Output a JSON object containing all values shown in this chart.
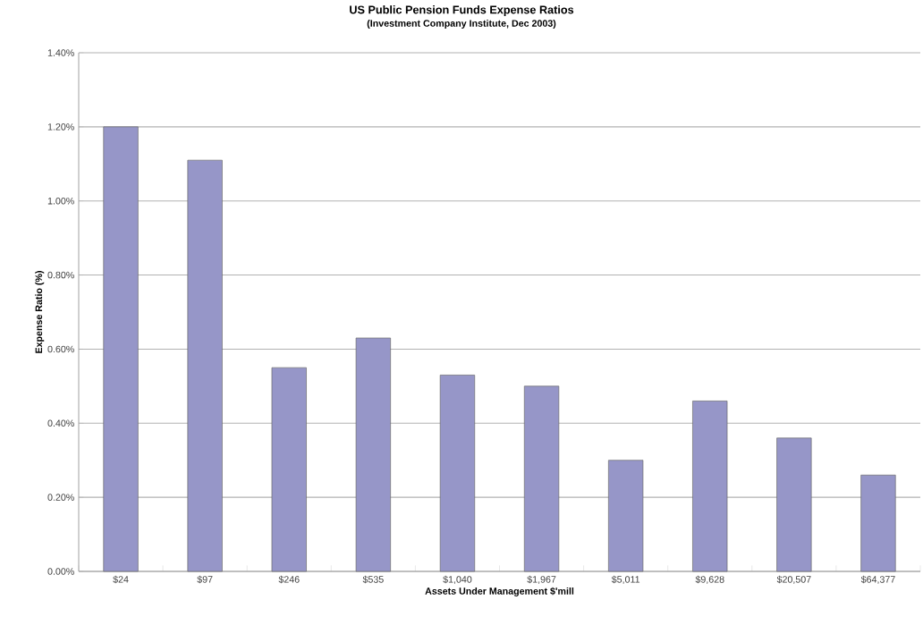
{
  "chart_data": {
    "type": "bar",
    "title": "US Public Pension Funds Expense Ratios",
    "subtitle": "(Investment Company Institute, Dec 2003)",
    "xlabel": "Assets Under Management $'mill",
    "ylabel": "Expense Ratio (%)",
    "categories": [
      "$24",
      "$97",
      "$246",
      "$535",
      "$1,040",
      "$1,967",
      "$5,011",
      "$9,628",
      "$20,507",
      "$64,377"
    ],
    "values": [
      1.2,
      1.11,
      0.55,
      0.63,
      0.53,
      0.5,
      0.3,
      0.46,
      0.36,
      0.26
    ],
    "color": "#9696c8",
    "ylim": [
      0,
      1.4
    ],
    "yticks": [
      {
        "value": 0,
        "label": "0.00%"
      },
      {
        "value": 0.2,
        "label": "0.20%"
      },
      {
        "value": 0.4,
        "label": "0.40%"
      },
      {
        "value": 0.6,
        "label": "0.60%"
      },
      {
        "value": 0.8,
        "label": "0.80%"
      },
      {
        "value": 1.0,
        "label": "1.00%"
      },
      {
        "value": 1.2,
        "label": "1.20%"
      },
      {
        "value": 1.4,
        "label": "1.40%"
      }
    ],
    "grid": "y"
  }
}
